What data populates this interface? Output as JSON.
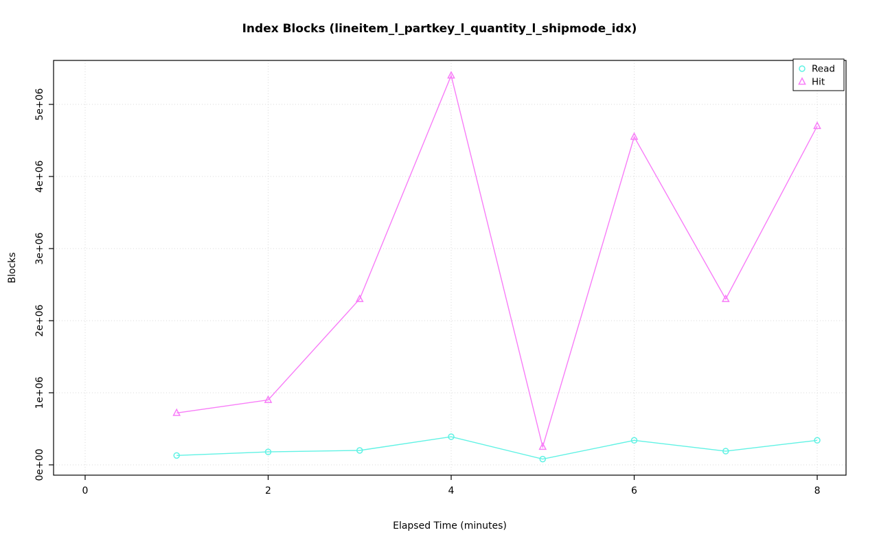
{
  "chart_data": {
    "type": "line",
    "title": "Index Blocks (lineitem_l_partkey_l_quantity_l_shipmode_idx)",
    "xlabel": "Elapsed Time (minutes)",
    "ylabel": "Blocks",
    "x": [
      1,
      2,
      3,
      4,
      5,
      6,
      7,
      8
    ],
    "series": [
      {
        "name": "Read",
        "color": "#5FF2E4",
        "marker": "circle",
        "values": [
          130000,
          180000,
          200000,
          390000,
          80000,
          340000,
          190000,
          340000
        ]
      },
      {
        "name": "Hit",
        "color": "#F87CF8",
        "marker": "triangle",
        "values": [
          720000,
          900000,
          2300000,
          5400000,
          250000,
          4550000,
          2300000,
          4700000
        ]
      }
    ],
    "xticks": [
      0,
      2,
      4,
      6,
      8
    ],
    "xtick_labels": [
      "0",
      "2",
      "4",
      "6",
      "8"
    ],
    "yticks": [
      0,
      1000000,
      2000000,
      3000000,
      4000000,
      5000000
    ],
    "ytick_labels": [
      "0e+00",
      "1e+06",
      "2e+06",
      "3e+06",
      "4e+06",
      "5e+06"
    ],
    "xlim": [
      -0.345,
      8.315
    ],
    "ylim": [
      -143000,
      5610000
    ],
    "grid": true,
    "grid_color": "#d9d9d9",
    "axis_color": "#000000",
    "legend_position": "top-right",
    "legend_labels": [
      "Read",
      "Hit"
    ]
  }
}
